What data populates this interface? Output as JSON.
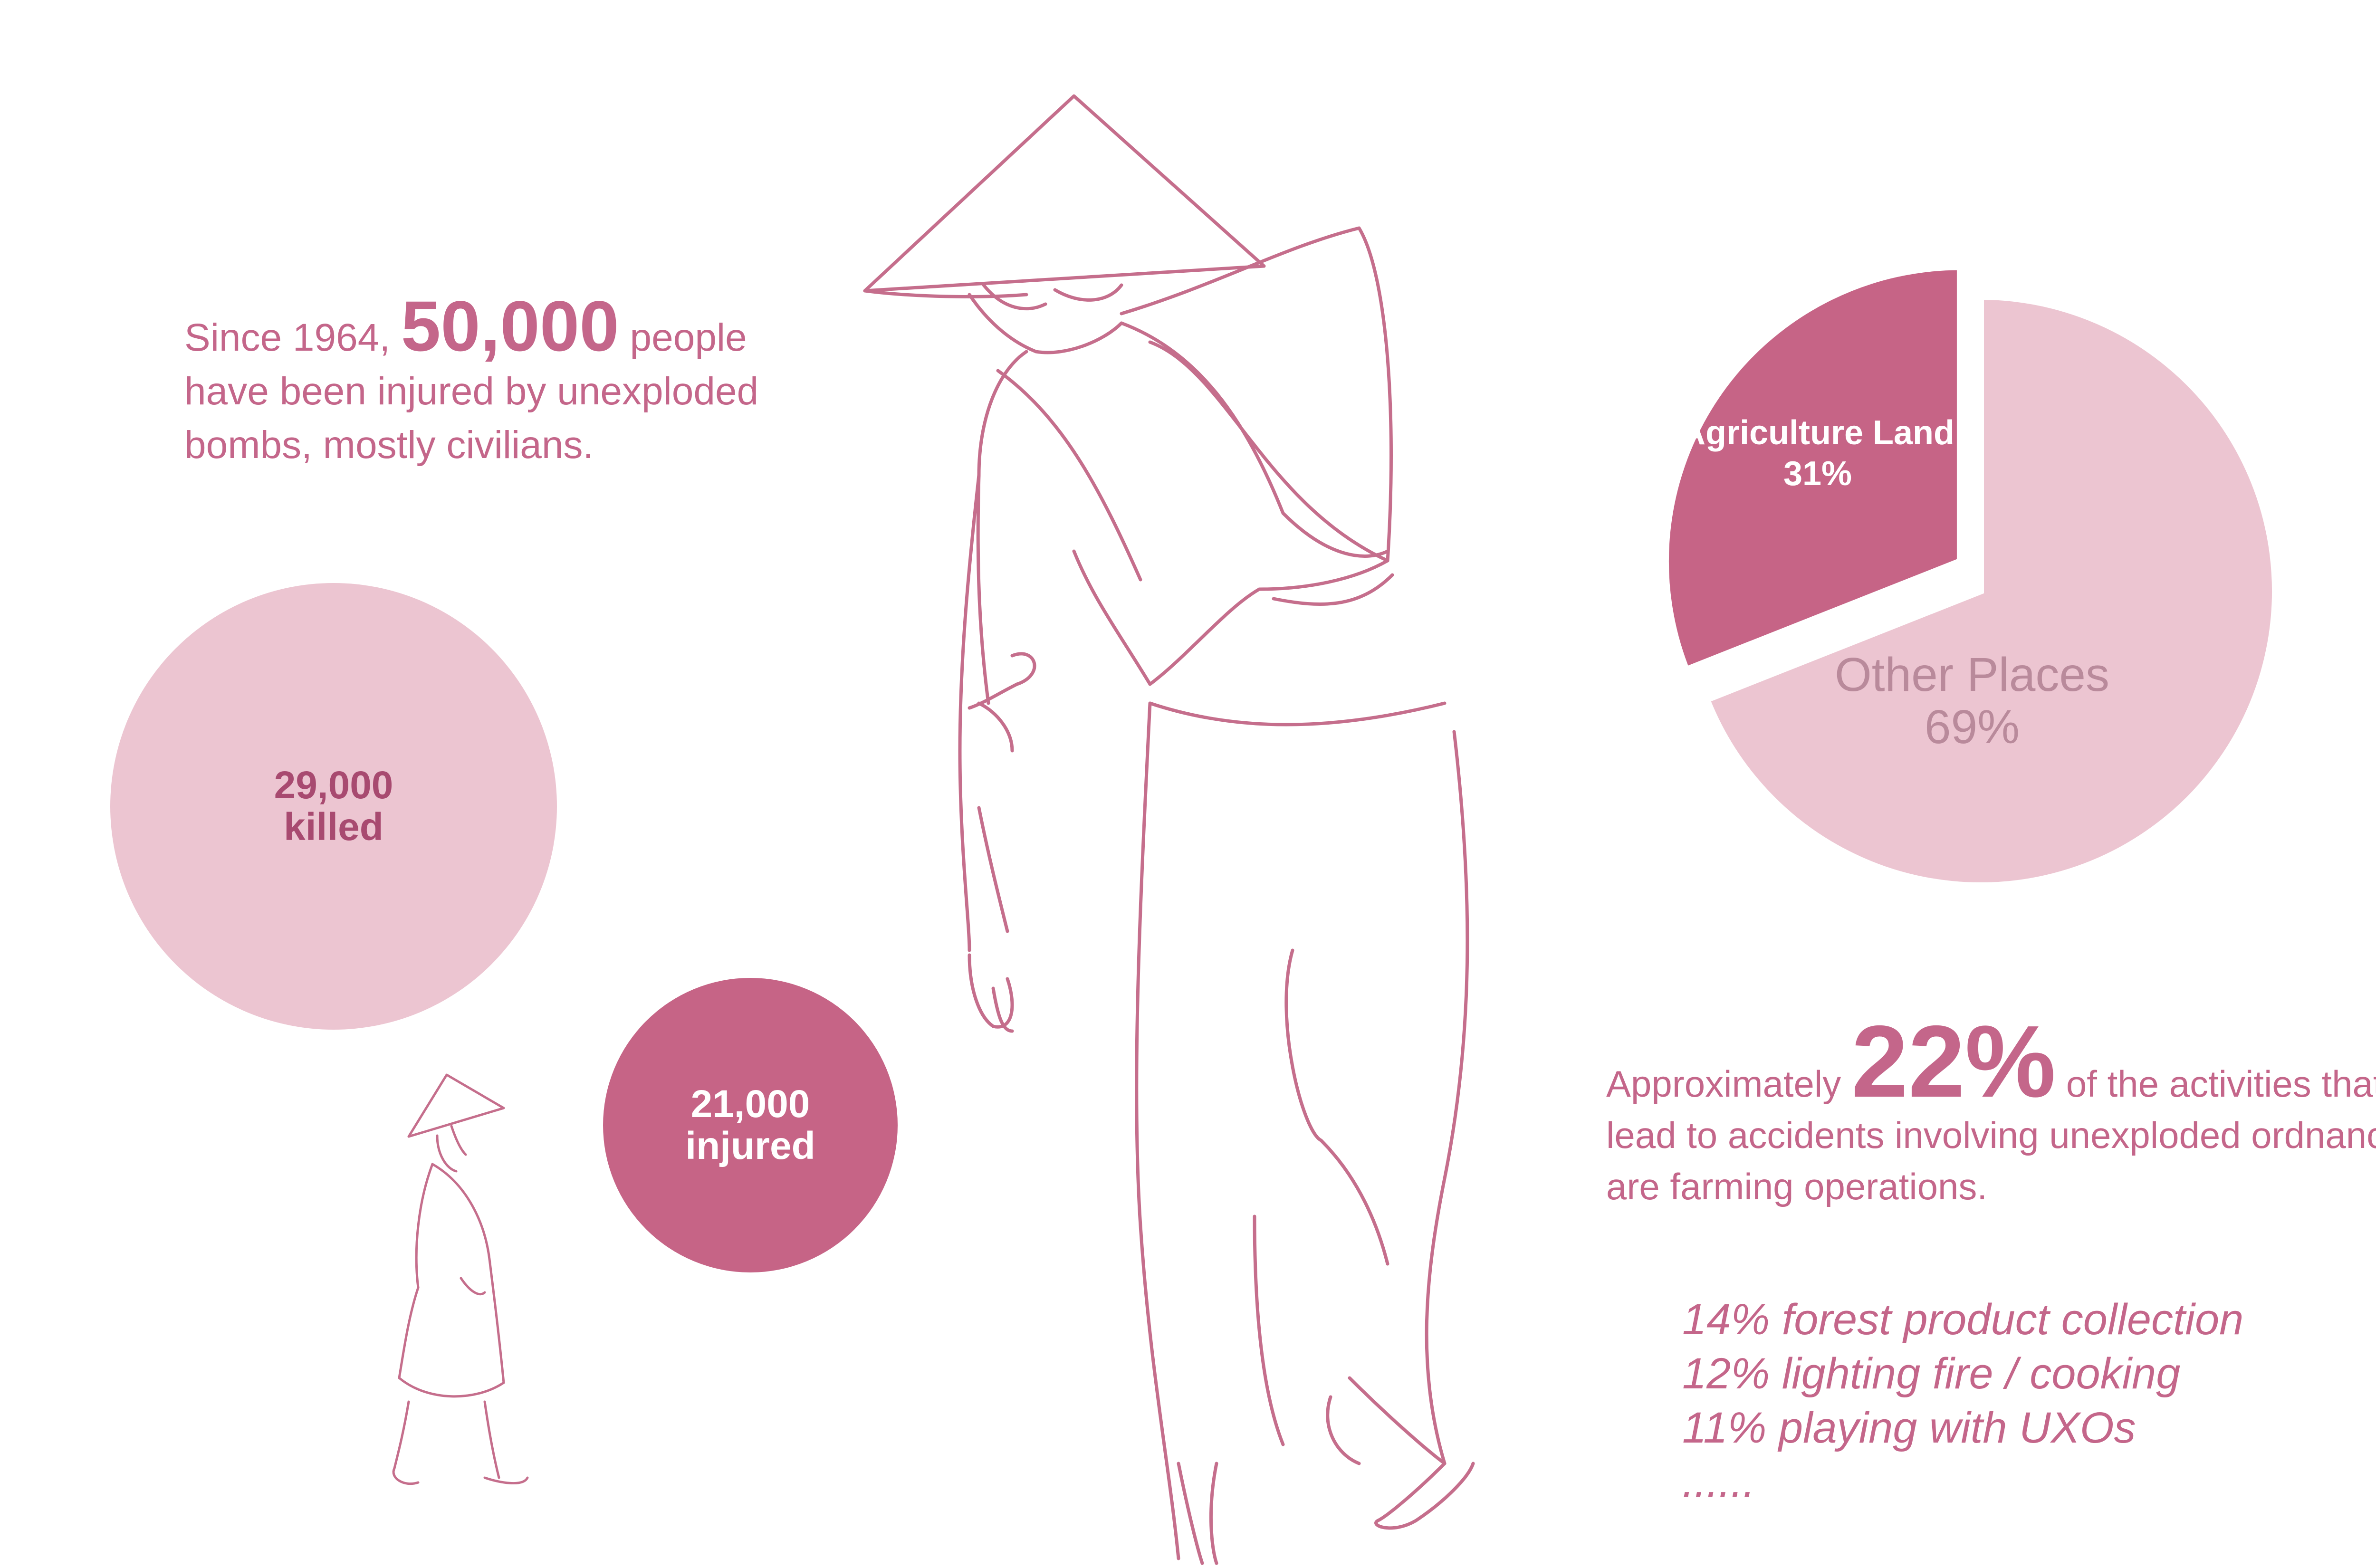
{
  "intro": {
    "since": "Since  1964,",
    "number": "50,000",
    "people": "people",
    "rest": "have been injured by unexploded bombs,  mostly civilians."
  },
  "circles": {
    "killed": {
      "value": "29,000",
      "label": "killed"
    },
    "injured": {
      "value": "21,000",
      "label": "injured"
    }
  },
  "chart_data": {
    "type": "pie",
    "categories": [
      "Agriculture Land",
      "Other Places"
    ],
    "values": [
      31,
      69
    ],
    "value_labels": [
      "31%",
      "69%"
    ],
    "colors": [
      "#c66486",
      "#ecc5d1"
    ],
    "exploded": [
      true,
      false
    ]
  },
  "paragraph": {
    "pre": "Approximately",
    "percent": "22%",
    "post": "of the activities that lead to accidents involving unexploded ordnance are farming operations."
  },
  "activities": [
    "14% forest product collection",
    "12% lighting fire / cooking",
    "11% playing with UXOs",
    "......"
  ],
  "colors": {
    "accent": "#c66486",
    "light": "#ecc5d1",
    "text": "#c4668a",
    "line_art": "#c56e8c"
  },
  "illustrations": [
    "large-walking-farmer-with-basket-illustration",
    "small-walking-figure-with-conical-hat-illustration"
  ]
}
